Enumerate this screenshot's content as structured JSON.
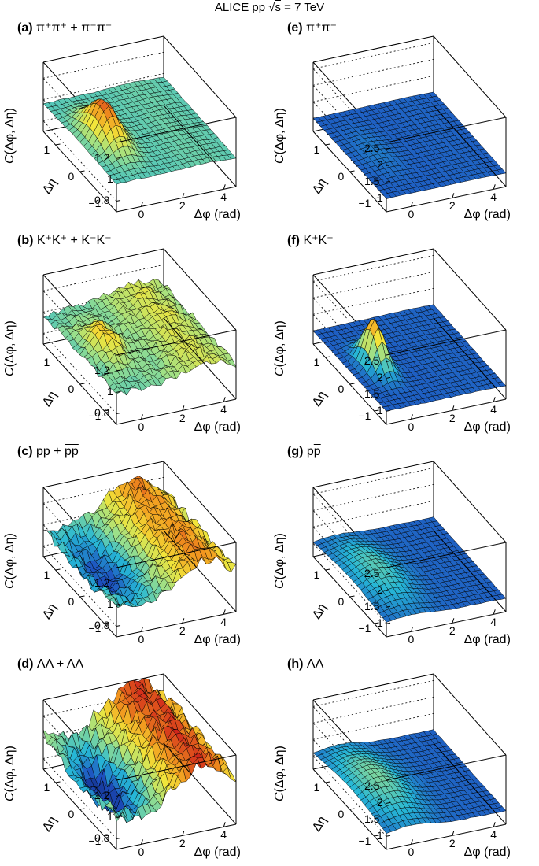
{
  "title": "ALICE pp",
  "energy_prefix": "s",
  "energy_value": " = 7 TeV",
  "axes": {
    "z_label_prefix": "C",
    "z_label_rest": "(Δφ, Δη)",
    "x_label": "Δφ (rad)",
    "y_label": "Δη",
    "x_ticks": [
      "0",
      "2",
      "4"
    ],
    "y_ticks": [
      "1",
      "0",
      "−1"
    ]
  },
  "colormap": [
    "#0f1f6e",
    "#1d4fbf",
    "#26b7d6",
    "#9be08a",
    "#f2e53a",
    "#f29a1f",
    "#d0231b"
  ],
  "chart_data": [
    {
      "id": "a",
      "type": "surface",
      "label": "(a)",
      "system": "π⁺π⁺ + π⁻π⁻",
      "system_over": "",
      "z_range": [
        0.7,
        1.35
      ],
      "z_ticks": [
        "0.8",
        "1",
        "1.2"
      ],
      "peak": {
        "dphi": 0,
        "deta": 0,
        "height": 0.35,
        "width_phi": 0.5,
        "width_eta": 0.5
      },
      "ridge": {
        "dphi": 3.1,
        "height": 0.02
      },
      "baseline": 0.96,
      "noise": 0.005
    },
    {
      "id": "e",
      "type": "surface",
      "label": "(e)",
      "system": "π⁺π⁻",
      "system_over": "",
      "z_range": [
        0.6,
        2.7
      ],
      "z_ticks": [
        "1",
        "1.5",
        "2",
        "2.5"
      ],
      "peak": {
        "dphi": 0,
        "deta": 0,
        "height": 0.1,
        "width_phi": 0.6,
        "width_eta": 0.6
      },
      "ridge": {
        "dphi": 3.1,
        "height": 0.02
      },
      "baseline": 1.0,
      "noise": 0.003
    },
    {
      "id": "b",
      "type": "surface",
      "label": "(b)",
      "system": "K⁺K⁺ + K⁻K⁻",
      "system_over": "",
      "z_range": [
        0.7,
        1.35
      ],
      "z_ticks": [
        "0.8",
        "1",
        "1.2"
      ],
      "peak": {
        "dphi": 0,
        "deta": 0,
        "height": 0.2,
        "width_phi": 0.5,
        "width_eta": 0.5
      },
      "ridge": {
        "dphi": 3.1,
        "height": 0.12
      },
      "baseline": 0.98,
      "noise": 0.03
    },
    {
      "id": "f",
      "type": "surface",
      "label": "(f)",
      "system": "K⁺K⁻",
      "system_over": "",
      "z_range": [
        0.6,
        2.7
      ],
      "z_ticks": [
        "1",
        "1.5",
        "2",
        "2.5"
      ],
      "peak": {
        "dphi": 0,
        "deta": 0,
        "height": 1.4,
        "width_phi": 0.35,
        "width_eta": 0.35
      },
      "ridge": {
        "dphi": 3.1,
        "height": 0.02
      },
      "baseline": 1.0,
      "noise": 0.01
    },
    {
      "id": "c",
      "type": "surface",
      "label": "(c)",
      "system": "pp + ",
      "system_over": "pp",
      "z_range": [
        0.7,
        1.35
      ],
      "z_ticks": [
        "0.8",
        "1",
        "1.2"
      ],
      "peak": {
        "dphi": 0,
        "deta": 0,
        "height": -0.2,
        "width_phi": 0.9,
        "width_eta": 0.9
      },
      "ridge": {
        "dphi": 3.1,
        "height": 0.25
      },
      "baseline": 1.0,
      "noise": 0.05
    },
    {
      "id": "g",
      "type": "surface",
      "label": "(g)",
      "system": "p",
      "system_over": "p",
      "z_range": [
        0.6,
        2.7
      ],
      "z_ticks": [
        "1",
        "1.5",
        "2",
        "2.5"
      ],
      "peak": {
        "dphi": 0,
        "deta": 0,
        "height": 0.45,
        "width_phi": 0.9,
        "width_eta": 0.9
      },
      "ridge": {
        "dphi": 3.1,
        "height": 0.02
      },
      "baseline": 1.0,
      "noise": 0.01
    },
    {
      "id": "d",
      "type": "surface",
      "label": "(d)",
      "system": "ΛΛ + ",
      "system_over": "ΛΛ",
      "z_range": [
        0.7,
        1.35
      ],
      "z_ticks": [
        "0.8",
        "1",
        "1.2"
      ],
      "peak": {
        "dphi": 0,
        "deta": 0,
        "height": -0.3,
        "width_phi": 0.9,
        "width_eta": 0.9
      },
      "ridge": {
        "dphi": 3.1,
        "height": 0.28
      },
      "baseline": 1.05,
      "noise": 0.07
    },
    {
      "id": "h",
      "type": "surface",
      "label": "(h)",
      "system": "Λ",
      "system_over": "Λ",
      "z_range": [
        0.6,
        2.7
      ],
      "z_ticks": [
        "1",
        "1.5",
        "2",
        "2.5"
      ],
      "peak": {
        "dphi": 0,
        "deta": 0,
        "height": 0.55,
        "width_phi": 1.0,
        "width_eta": 1.0
      },
      "ridge": {
        "dphi": 3.1,
        "height": 0.02
      },
      "baseline": 1.0,
      "noise": 0.01
    }
  ]
}
